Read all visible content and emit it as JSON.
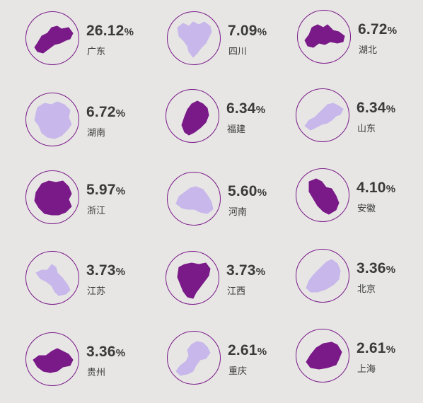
{
  "chart_data": {
    "type": "table",
    "title": "",
    "items": [
      {
        "province": "广东",
        "value": "26.12",
        "unit": "%",
        "color": "#7a1a88"
      },
      {
        "province": "四川",
        "value": "7.09",
        "unit": "%",
        "color": "#c8b7ea"
      },
      {
        "province": "湖北",
        "value": "6.72",
        "unit": "%",
        "color": "#7a1a88"
      },
      {
        "province": "湖南",
        "value": "6.72",
        "unit": "%",
        "color": "#c8b7ea"
      },
      {
        "province": "福建",
        "value": "6.34",
        "unit": "%",
        "color": "#7a1a88"
      },
      {
        "province": "山东",
        "value": "6.34",
        "unit": "%",
        "color": "#c8b7ea"
      },
      {
        "province": "浙江",
        "value": "5.97",
        "unit": "%",
        "color": "#7a1a88"
      },
      {
        "province": "河南",
        "value": "5.60",
        "unit": "%",
        "color": "#c8b7ea"
      },
      {
        "province": "安徽",
        "value": "4.10",
        "unit": "%",
        "color": "#7a1a88"
      },
      {
        "province": "江苏",
        "value": "3.73",
        "unit": "%",
        "color": "#c8b7ea"
      },
      {
        "province": "江西",
        "value": "3.73",
        "unit": "%",
        "color": "#7a1a88"
      },
      {
        "province": "北京",
        "value": "3.36",
        "unit": "%",
        "color": "#c8b7ea"
      },
      {
        "province": "贵州",
        "value": "3.36",
        "unit": "%",
        "color": "#7a1a88"
      },
      {
        "province": "重庆",
        "value": "2.61",
        "unit": "%",
        "color": "#c8b7ea"
      },
      {
        "province": "上海",
        "value": "2.61",
        "unit": "%",
        "color": "#7a1a88"
      }
    ]
  },
  "icons": [
    "guangdong-map-icon",
    "sichuan-map-icon",
    "hubei-map-icon",
    "hunan-map-icon",
    "fujian-map-icon",
    "shandong-map-icon",
    "zhejiang-map-icon",
    "henan-map-icon",
    "anhui-map-icon",
    "jiangsu-map-icon",
    "jiangxi-map-icon",
    "beijing-map-icon",
    "guizhou-map-icon",
    "chongqing-map-icon",
    "shanghai-map-icon"
  ]
}
